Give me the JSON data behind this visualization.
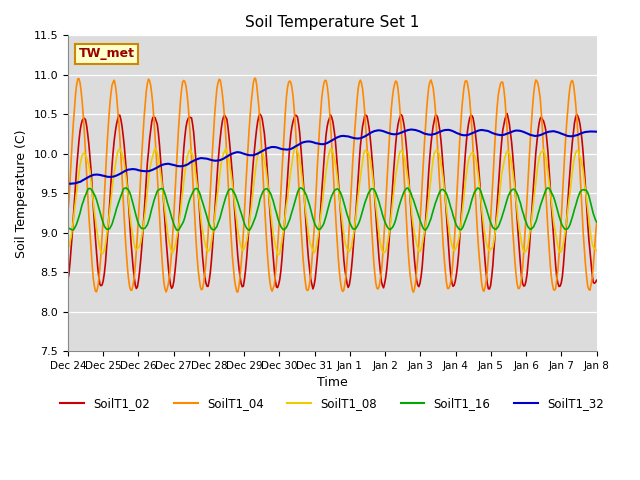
{
  "title": "Soil Temperature Set 1",
  "xlabel": "Time",
  "ylabel": "Soil Temperature (C)",
  "ylim": [
    7.5,
    11.5
  ],
  "background_color": "#dcdcdc",
  "fig_background": "#ffffff",
  "annotation_label": "TW_met",
  "series": {
    "SoilT1_02": {
      "color": "#cc0000",
      "linewidth": 1.2
    },
    "SoilT1_04": {
      "color": "#ff8800",
      "linewidth": 1.2
    },
    "SoilT1_08": {
      "color": "#eecc00",
      "linewidth": 1.2
    },
    "SoilT1_16": {
      "color": "#00aa00",
      "linewidth": 1.2
    },
    "SoilT1_32": {
      "color": "#0000cc",
      "linewidth": 1.5
    }
  },
  "xtick_labels": [
    "Dec 24",
    "Dec 25",
    "Dec 26",
    "Dec 27",
    "Dec 28",
    "Dec 29",
    "Dec 30",
    "Dec 31",
    "Jan 1",
    "Jan 2",
    "Jan 3",
    "Jan 4",
    "Jan 5",
    "Jan 6",
    "Jan 7",
    "Jan 8"
  ],
  "n_points": 480,
  "total_days": 15
}
